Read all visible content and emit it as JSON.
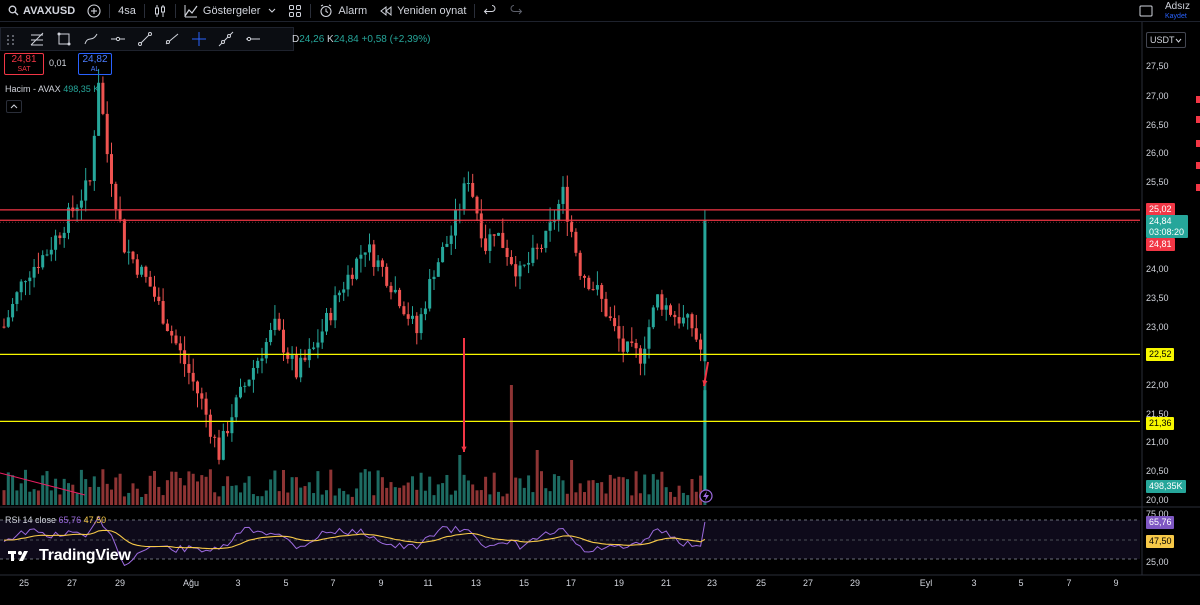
{
  "toolbar": {
    "symbol": "AVAXUSD",
    "interval": "4sa",
    "indicators": "Göstergeler",
    "alarm": "Alarm",
    "replay": "Yeniden oynat",
    "layout_name": "Adsız",
    "layout_save": "Kaydet"
  },
  "legend": {
    "ohlc_prefix": "D",
    "ohlc_o": "24,26",
    "ohlc_c_label": "K",
    "ohlc_c": "24,84",
    "change": "+0,58 (+2,39%)"
  },
  "trade": {
    "sell_price": "24,81",
    "sell_label": "SAT",
    "spread": "0,01",
    "buy_price": "24,82",
    "buy_label": "AL"
  },
  "volume": {
    "label": "Hacim - AVAX",
    "value": "498,35 K"
  },
  "rsi": {
    "label": "RSI 14 close",
    "rsi_value": "65,76",
    "ma_value": "47,50"
  },
  "brand": "TradingView",
  "currency": "USDT",
  "price_axis": [
    "27,50",
    "27,00",
    "26,50",
    "26,00",
    "25,50",
    "24,00",
    "23,50",
    "23,00",
    "22,00",
    "21,50",
    "21,00",
    "20,50",
    "20,00"
  ],
  "rsi_axis": [
    "75,00",
    "25,00"
  ],
  "badges": {
    "top_line": "25,02",
    "last_price": "24,84",
    "countdown": "03:08:20",
    "bid": "24,81",
    "support_1": "22,52",
    "support_2": "21,36",
    "volume_badge": "498,35K",
    "rsi_badge": "65,76",
    "rsi_ma_badge": "47,50"
  },
  "time_axis": [
    "25",
    "27",
    "29",
    "Ağu",
    "3",
    "5",
    "7",
    "9",
    "11",
    "13",
    "15",
    "17",
    "19",
    "21",
    "23",
    "25",
    "27",
    "29",
    "Eyl",
    "3",
    "5",
    "7",
    "9"
  ],
  "colors": {
    "up": "#26a69a",
    "down": "#ef5350",
    "resistance": "#f23645",
    "support": "#f7f700",
    "rsi": "#9c6ade",
    "rsi_ma": "#f7c948"
  },
  "levels": {
    "resistance_top": 25.02,
    "resistance_bottom": 24.84,
    "support_1": 22.52,
    "support_2": 21.36
  }
}
